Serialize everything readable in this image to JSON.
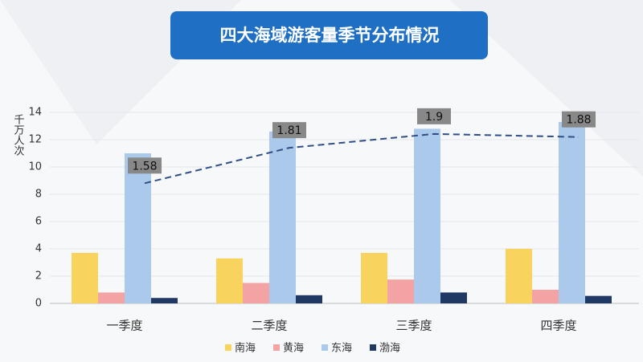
{
  "chart_data": {
    "type": "bar",
    "title": "四大海域游客量季节分布情况",
    "y_label": "千万人次",
    "categories": [
      "一季度",
      "二季度",
      "三季度",
      "四季度"
    ],
    "series": [
      {
        "name": "南海",
        "color": "#f8d35e",
        "values": [
          3.7,
          3.3,
          3.7,
          4.0
        ]
      },
      {
        "name": "黄海",
        "color": "#f3a3a3",
        "values": [
          0.8,
          1.5,
          1.75,
          1.0
        ]
      },
      {
        "name": "东海",
        "color": "#abc9ea",
        "values": [
          11.0,
          12.6,
          12.8,
          13.3
        ]
      },
      {
        "name": "渤海",
        "color": "#1f3864",
        "values": [
          0.4,
          0.6,
          0.8,
          0.55
        ]
      },
      {
        "type": "line",
        "axis": "y2",
        "color": "#2f4f86",
        "values": [
          1.58,
          1.81,
          1.9,
          1.88
        ]
      }
    ],
    "ylim": [
      0,
      14
    ],
    "yticks": [
      0,
      2,
      4,
      6,
      8,
      10,
      12,
      14
    ],
    "y2lim": [
      0.8,
      2.04
    ],
    "grid": true,
    "legend": "bottom"
  }
}
